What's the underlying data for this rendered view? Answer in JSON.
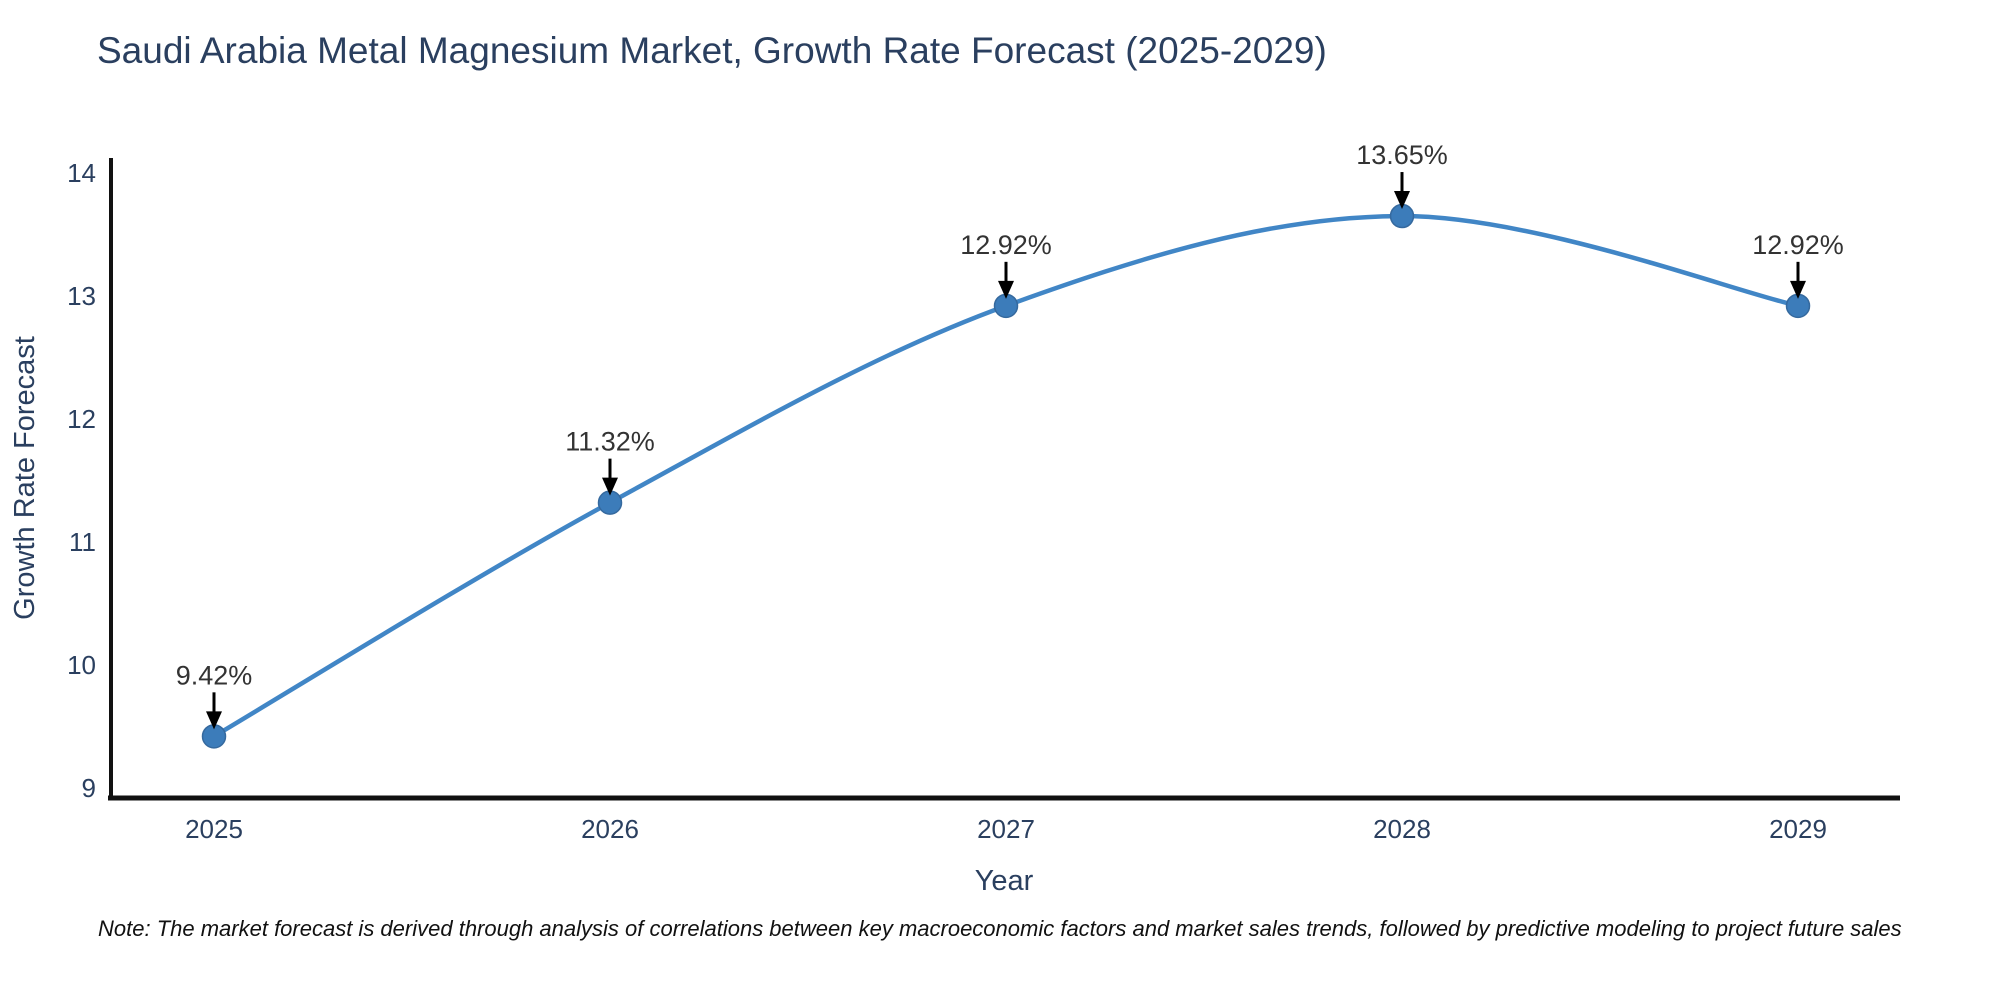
{
  "title": "Saudi Arabia Metal Magnesium Market, Growth Rate Forecast (2025-2029)",
  "note": "Note: The market forecast is derived through analysis of correlations between key macroeconomic factors and market sales trends, followed by predictive modeling to project future sales",
  "colors": {
    "title_text": "#2a3f5f",
    "axis_text": "#2a3f5f",
    "annotation_text": "#333333",
    "axis_line": "#111111",
    "line": "#4186c6",
    "marker": "#3c7cba",
    "marker_edge": "#35699e",
    "arrow": "#000000",
    "background": "#ffffff"
  },
  "chart_data": {
    "type": "line",
    "title": "Saudi Arabia Metal Magnesium Market, Growth Rate Forecast (2025-2029)",
    "x": [
      2025,
      2026,
      2027,
      2028,
      2029
    ],
    "series": [
      {
        "name": "Growth Rate Forecast",
        "values": [
          9.42,
          11.32,
          12.92,
          13.65,
          12.92
        ]
      }
    ],
    "point_labels": [
      "9.42%",
      "11.32%",
      "12.92%",
      "13.65%",
      "12.92%"
    ],
    "xlabel": "Year",
    "ylabel": "Growth Rate Forecast",
    "ylim": [
      9,
      14
    ],
    "yticks": [
      9,
      10,
      11,
      12,
      13,
      14
    ],
    "xticks": [
      "2025",
      "2026",
      "2027",
      "2028",
      "2029"
    ],
    "grid": false,
    "legend": "none",
    "curve": "smooth",
    "annotations_have_arrows": true
  }
}
